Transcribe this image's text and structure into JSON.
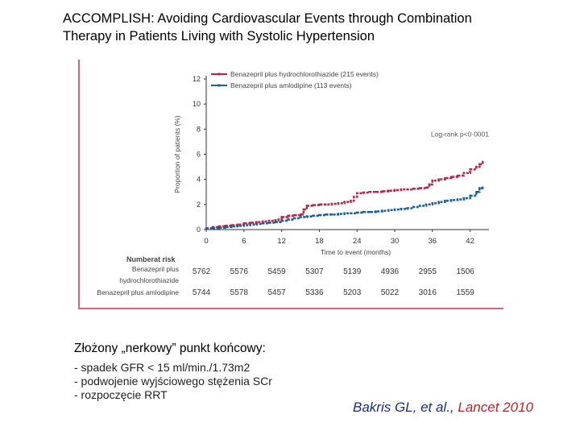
{
  "slide": {
    "title_line1": "ACCOMPLISH: Avoiding Cardiovascular Events through Combination",
    "title_line2": "Therapy in Patients Living with Systolic Hypertension"
  },
  "endpoint": {
    "heading": "Złożony „nerkowy” punkt końcowy:",
    "items": [
      "- spadek GFR < 15 ml/min./1.73m2",
      "- podwojenie wyjściowego stężenia SCr",
      "- rozpoczęcie RRT"
    ]
  },
  "citation": {
    "authors": "Bakris GL, et al., ",
    "journal": "Lancet 2010"
  },
  "colors": {
    "series1": "#b5284a",
    "series2": "#1f5f96",
    "frame": "#c96a78"
  },
  "chart_data": {
    "type": "line",
    "title": "",
    "xlabel": "Time to event (months)",
    "ylabel": "Proportion of patients (%)",
    "xlim": [
      0,
      45
    ],
    "ylim": [
      0,
      12
    ],
    "xticks": [
      0,
      6,
      12,
      18,
      24,
      30,
      36,
      42
    ],
    "yticks": [
      0,
      2,
      4,
      6,
      8,
      10,
      12
    ],
    "annotation": "Log-rank p<0·0001",
    "series": [
      {
        "name": "Benazepril plus hydrochlorothiazide (215 events)",
        "x": [
          0,
          1,
          2,
          3,
          4,
          5,
          6,
          7,
          8,
          9,
          10,
          11,
          11.5,
          12,
          13,
          14,
          15,
          15.5,
          16,
          17,
          18,
          19,
          20,
          21,
          22,
          23,
          23.5,
          24,
          25,
          26,
          27,
          28,
          29,
          30,
          31,
          32,
          33,
          34,
          35,
          35.5,
          36,
          37,
          38,
          39,
          40,
          41,
          42,
          43,
          43.5,
          44
        ],
        "y": [
          0.1,
          0.2,
          0.25,
          0.3,
          0.35,
          0.4,
          0.5,
          0.55,
          0.6,
          0.65,
          0.7,
          0.75,
          0.8,
          1.0,
          1.1,
          1.15,
          1.2,
          1.6,
          1.9,
          1.95,
          2.0,
          2.0,
          2.05,
          2.1,
          2.2,
          2.3,
          2.6,
          2.9,
          2.95,
          3.0,
          3.0,
          3.05,
          3.1,
          3.15,
          3.2,
          3.2,
          3.25,
          3.3,
          3.35,
          3.6,
          3.9,
          4.0,
          4.1,
          4.2,
          4.3,
          4.5,
          4.8,
          5.0,
          5.2,
          5.4
        ]
      },
      {
        "name": "Benazepril plus amlodipine (113 events)",
        "x": [
          0,
          1,
          2,
          3,
          4,
          5,
          6,
          7,
          8,
          9,
          10,
          11,
          12,
          13,
          14,
          15,
          16,
          17,
          18,
          19,
          20,
          21,
          22,
          23,
          24,
          25,
          26,
          27,
          28,
          29,
          30,
          31,
          32,
          33,
          34,
          35,
          36,
          37,
          38,
          39,
          40,
          41,
          42,
          43,
          43.5,
          44
        ],
        "y": [
          0.05,
          0.1,
          0.15,
          0.2,
          0.25,
          0.3,
          0.35,
          0.4,
          0.45,
          0.5,
          0.55,
          0.6,
          0.7,
          0.8,
          0.9,
          1.0,
          1.05,
          1.1,
          1.15,
          1.2,
          1.2,
          1.25,
          1.3,
          1.3,
          1.35,
          1.4,
          1.4,
          1.45,
          1.5,
          1.55,
          1.6,
          1.65,
          1.7,
          1.8,
          1.9,
          2.0,
          2.1,
          2.2,
          2.3,
          2.35,
          2.4,
          2.5,
          2.7,
          3.0,
          3.3,
          3.35
        ]
      }
    ],
    "risk_table": {
      "title": "Numberat risk",
      "rows": [
        {
          "label_line1": "Benazepril plus",
          "label_line2": "hydrochlorothiazide",
          "values": [
            "5762",
            "5576",
            "5459",
            "5307",
            "5139",
            "4936",
            "2955",
            "1506"
          ]
        },
        {
          "label_line1": "Benazepril plus amlodipine",
          "label_line2": "",
          "values": [
            "5744",
            "5578",
            "5457",
            "5336",
            "5203",
            "5022",
            "3016",
            "1559"
          ]
        }
      ]
    }
  }
}
